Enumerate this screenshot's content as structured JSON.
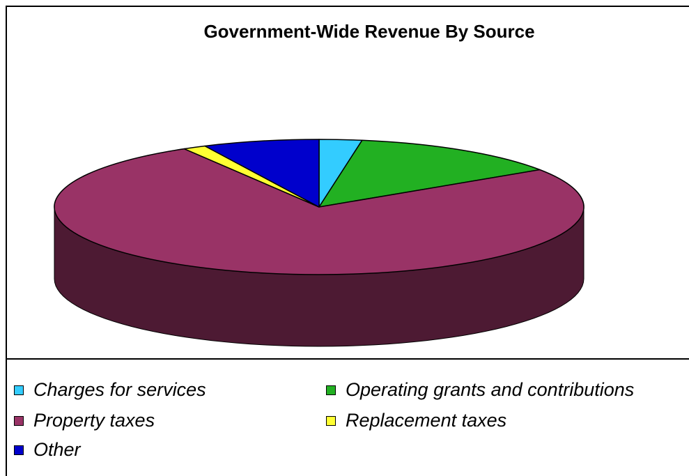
{
  "chart_data": {
    "type": "pie",
    "title": "Government-Wide Revenue By Source",
    "categories": [
      "Charges for services",
      "Operating grants and contributions",
      "Property taxes",
      "Replacement taxes",
      "Other"
    ],
    "values": [
      2.6,
      13.1,
      75.8,
      1.4,
      7.1
    ],
    "unit": "percent",
    "colors": [
      "#33CCFF",
      "#22B022",
      "#993366",
      "#FFFF33",
      "#0000CC"
    ],
    "style": "3d-pie",
    "legend_position": "bottom"
  }
}
